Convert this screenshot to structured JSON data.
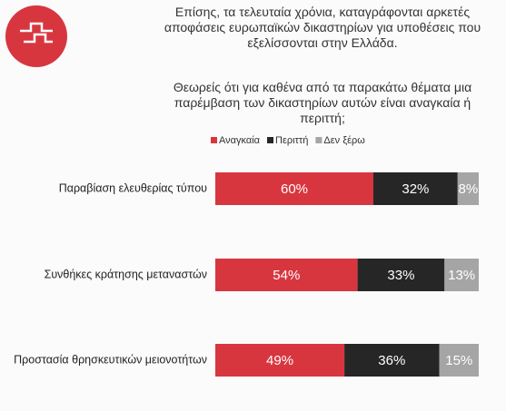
{
  "chart_data": {
    "type": "stacked-bar-horizontal",
    "title": "Επίσης, τα τελευταία χρόνια, καταγράφονται αρκετές αποφάσεις ευρωπαϊκών δικαστηρίων για υποθέσεις που εξελίσσονται στην Ελλάδα.",
    "subtitle": "Θεωρείς ότι για καθένα από τα παρακάτω θέματα μια παρέμβαση των δικαστηρίων αυτών είναι αναγκαία ή περιττή;",
    "categories": [
      "Παραβίαση ελευθερίας τύπου",
      "Συνθήκες κράτησης μεταναστών",
      "Προστασία θρησκευτικών μειονοτήτων"
    ],
    "series": [
      {
        "name": "Αναγκαία",
        "color": "#d8363f",
        "values": [
          60,
          54,
          49
        ],
        "value_labels": [
          "60%",
          "54%",
          "49%"
        ]
      },
      {
        "name": "Περιττή",
        "color": "#262626",
        "values": [
          32,
          33,
          36
        ],
        "value_labels": [
          "32%",
          "33%",
          "36%"
        ]
      },
      {
        "name": "Δεν ξέρω",
        "color": "#a5a5a5",
        "values": [
          8,
          13,
          15
        ],
        "value_labels": [
          "8%",
          "13%",
          "15%"
        ]
      }
    ]
  }
}
